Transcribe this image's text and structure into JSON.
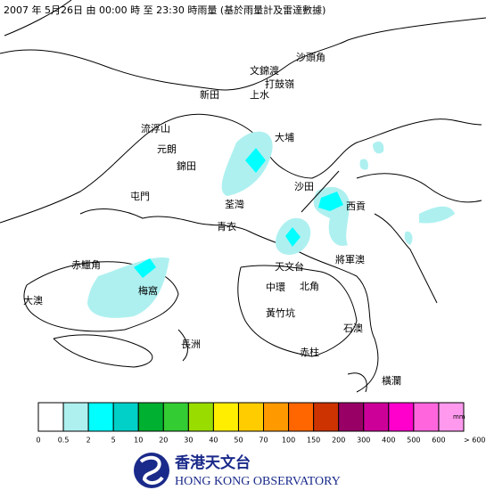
{
  "title": "2007 年  5月26日 由 00:00 時 至 23:30 時雨量 (基於雨量計及雷達數據)",
  "places": [
    "沙頭角",
    "文錦渡",
    "打鼓嶺",
    "新田",
    "上水",
    "流浮山",
    "大埔",
    "元朗",
    "錦田",
    "沙田",
    "屯門",
    "荃灣",
    "西貢",
    "青衣",
    "赤鱲角",
    "天文台",
    "將軍澳",
    "梅窩",
    "中環",
    "北角",
    "大澳",
    "黃竹坑",
    "長洲",
    "石澳",
    "赤柱",
    "橫瀾"
  ],
  "legend": {
    "colors": [
      "#ffffff",
      "#aef0f0",
      "#00ffff",
      "#00d0c8",
      "#00b030",
      "#33cc33",
      "#99dd00",
      "#ffee00",
      "#ffcc00",
      "#ff9900",
      "#ff6600",
      "#cc3300",
      "#990066",
      "#cc0099",
      "#ff00cc",
      "#ff66dd",
      "#ff99ee",
      "#ffddff"
    ],
    "labels": [
      "0",
      "0.5",
      "2",
      "5",
      "10",
      "20",
      "30",
      "40",
      "50",
      "70",
      "100",
      "150",
      "200",
      "300",
      "400",
      "500",
      "600",
      "> 600"
    ],
    "unit": "mm"
  },
  "logo": {
    "chinese": "香港天文台",
    "english": "HONG KONG OBSERVATORY"
  }
}
